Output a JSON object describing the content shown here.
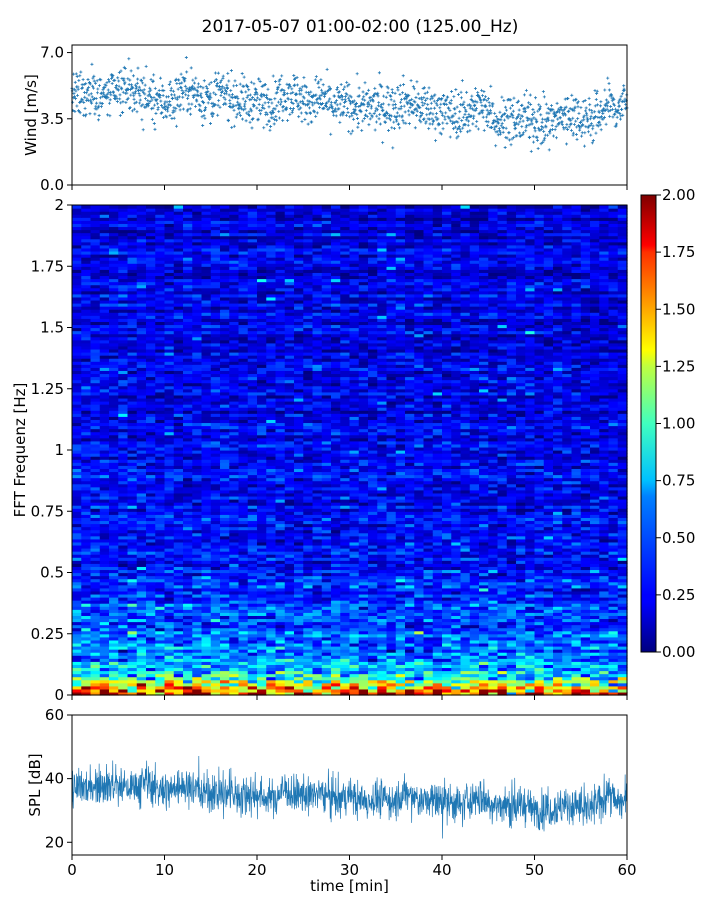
{
  "figure": {
    "title": "2017-05-07 01:00-02:00 (125.00_Hz)"
  },
  "chart_data": [
    {
      "id": "wind",
      "type": "scatter",
      "title": "",
      "xlabel": "",
      "ylabel": "Wind [m/s]",
      "xlim": [
        0,
        60
      ],
      "ylim": [
        0,
        7.4
      ],
      "yticks": [
        "0.0",
        "3.5",
        "7.0"
      ],
      "ytick_values": [
        0,
        3.5,
        7.0
      ],
      "color": "#1f77b4",
      "marker": "plus",
      "grid": false,
      "x": [
        0,
        1,
        2,
        3,
        4,
        5,
        6,
        7,
        8,
        9,
        10,
        11,
        12,
        13,
        14,
        15,
        16,
        17,
        18,
        19,
        20,
        21,
        22,
        23,
        24,
        25,
        26,
        27,
        28,
        29,
        30,
        31,
        32,
        33,
        34,
        35,
        36,
        37,
        38,
        39,
        40,
        41,
        42,
        43,
        44,
        45,
        46,
        47,
        48,
        49,
        50,
        51,
        52,
        53,
        54,
        55,
        56,
        57,
        58,
        59,
        60
      ],
      "y": [
        4.7,
        4.6,
        5.0,
        4.8,
        4.7,
        4.9,
        5.1,
        5.0,
        4.6,
        4.5,
        4.4,
        4.5,
        5.2,
        5.0,
        4.6,
        4.7,
        4.8,
        4.7,
        4.5,
        4.4,
        4.4,
        4.3,
        4.4,
        4.9,
        4.8,
        4.5,
        4.4,
        4.6,
        4.3,
        4.2,
        4.3,
        4.1,
        4.0,
        4.2,
        4.1,
        4.2,
        4.4,
        4.3,
        4.0,
        4.0,
        3.9,
        3.8,
        3.8,
        3.9,
        4.1,
        4.2,
        3.3,
        3.5,
        3.4,
        3.5,
        3.4,
        3.3,
        3.3,
        3.6,
        3.8,
        3.6,
        3.5,
        3.7,
        4.3,
        4.0,
        4.5
      ]
    },
    {
      "id": "spectrogram",
      "type": "heatmap",
      "title": "",
      "xlabel": "",
      "ylabel": "FFT Frequenz [Hz]",
      "xlim": [
        0,
        60
      ],
      "ylim": [
        0,
        2
      ],
      "yticks": [
        "0",
        "0.25",
        "0.5",
        "0.75",
        "1",
        "1.25",
        "1.5",
        "1.75",
        "2"
      ],
      "ytick_values": [
        0,
        0.25,
        0.5,
        0.75,
        1,
        1.25,
        1.5,
        1.75,
        2
      ],
      "colormap": "jet",
      "frequency_profile": [
        [
          0.0,
          1.9
        ],
        [
          0.02,
          1.5
        ],
        [
          0.05,
          1.1
        ],
        [
          0.1,
          0.7
        ],
        [
          0.15,
          0.55
        ],
        [
          0.25,
          0.45
        ],
        [
          0.5,
          0.3
        ],
        [
          0.75,
          0.27
        ],
        [
          1.0,
          0.25
        ],
        [
          1.5,
          0.22
        ],
        [
          2.0,
          0.2
        ]
      ],
      "colorbar": {
        "min": 0,
        "max": 2,
        "ticks": [
          "0.00",
          "0.25",
          "0.50",
          "0.75",
          "1.00",
          "1.25",
          "1.50",
          "1.75",
          "2.00"
        ],
        "tick_values": [
          0,
          0.25,
          0.5,
          0.75,
          1.0,
          1.25,
          1.5,
          1.75,
          2.0
        ]
      }
    },
    {
      "id": "spl",
      "type": "line",
      "title": "",
      "xlabel": "time [min]",
      "ylabel": "SPL [dB]",
      "xlim": [
        0,
        60
      ],
      "ylim": [
        16,
        60
      ],
      "xticks": [
        "0",
        "10",
        "20",
        "30",
        "40",
        "50",
        "60"
      ],
      "xtick_values": [
        0,
        10,
        20,
        30,
        40,
        50,
        60
      ],
      "yticks": [
        "20",
        "40",
        "60"
      ],
      "ytick_values": [
        20,
        40,
        60
      ],
      "color": "#1f77b4",
      "grid": false,
      "x": [
        0,
        1,
        2,
        3,
        4,
        5,
        6,
        7,
        8,
        9,
        10,
        11,
        12,
        13,
        14,
        15,
        16,
        17,
        18,
        19,
        20,
        21,
        22,
        23,
        24,
        25,
        26,
        27,
        28,
        29,
        30,
        31,
        32,
        33,
        34,
        35,
        36,
        37,
        38,
        39,
        40,
        41,
        42,
        43,
        44,
        45,
        46,
        47,
        48,
        49,
        50,
        51,
        52,
        53,
        54,
        55,
        56,
        57,
        58,
        59,
        60
      ],
      "y": [
        36,
        37,
        38,
        39,
        38,
        38,
        37,
        38,
        39,
        37,
        36,
        37,
        38,
        37,
        36,
        35,
        36,
        35,
        34,
        35,
        35,
        34,
        34,
        37,
        35,
        34,
        35,
        36,
        34,
        33,
        35,
        33,
        33,
        34,
        33,
        33,
        35,
        34,
        33,
        33,
        33,
        32,
        32,
        33,
        34,
        33,
        31,
        32,
        31,
        32,
        30,
        30,
        31,
        31,
        32,
        31,
        30,
        32,
        36,
        32,
        33
      ]
    }
  ]
}
